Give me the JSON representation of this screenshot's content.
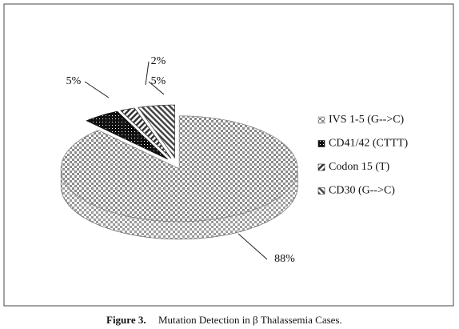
{
  "chart_data": {
    "type": "pie",
    "categories": [
      "IVS 1-5 (G-->C)",
      "CD41/42 (CTTT)",
      "Codon 15 (T)",
      "CD30 (G-->C)"
    ],
    "values": [
      88,
      5,
      2,
      5
    ],
    "value_labels": [
      "88%",
      "5%",
      "2%",
      "5%"
    ],
    "colors": [
      "#8a8a8a",
      "#111111",
      "#333333",
      "#444444"
    ],
    "legend": "right"
  },
  "caption": {
    "label": "Figure 3.",
    "text": "Mutation Detection in β Thalassemia Cases."
  }
}
